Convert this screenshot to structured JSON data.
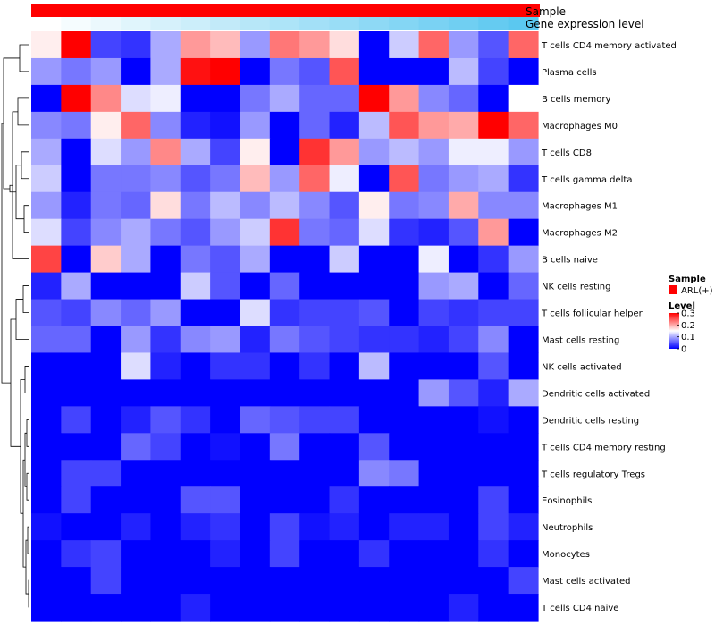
{
  "chart_data": {
    "type": "heatmap",
    "annotation_bars": {
      "sample": {
        "label": "Sample",
        "color": "#ff0000"
      },
      "gene_expression": {
        "label": "Gene expression level",
        "colors": [
          "#ffffff",
          "#5bc8f0"
        ]
      }
    },
    "rows": [
      "T cells CD4 memory activated",
      "Plasma cells",
      "B cells memory",
      "Macrophages M0",
      "T cells CD8",
      "T cells gamma delta",
      "Macrophages M1",
      "Macrophages M2",
      "B cells naive",
      "NK cells resting",
      "T cells follicular helper",
      "Mast cells resting",
      "NK cells activated",
      "Dendritic cells activated",
      "Dendritic cells resting",
      "T cells CD4 memory resting",
      "T cells regulatory  Tregs",
      "Eosinophils",
      "Neutrophils",
      "Monocytes",
      "Mast cells activated",
      "T cells CD4 naive"
    ],
    "values": [
      [
        0.16,
        0.3,
        0.04,
        0.03,
        0.1,
        0.21,
        0.19,
        0.09,
        0.23,
        0.21,
        0.17,
        0.0,
        0.12,
        0.24,
        0.09,
        0.05,
        0.24
      ],
      [
        0.09,
        0.07,
        0.09,
        0.0,
        0.1,
        0.29,
        0.3,
        0.0,
        0.07,
        0.05,
        0.25,
        0.0,
        0.0,
        0.0,
        0.11,
        0.04,
        0.0
      ],
      [
        0.0,
        0.3,
        0.22,
        0.13,
        0.14,
        0.0,
        0.0,
        0.07,
        0.1,
        0.06,
        0.06,
        0.3,
        0.21,
        0.08,
        0.06,
        0.0,
        0.15
      ],
      [
        0.08,
        0.07,
        0.16,
        0.24,
        0.08,
        0.02,
        0.01,
        0.09,
        0.0,
        0.06,
        0.02,
        0.11,
        0.25,
        0.21,
        0.2,
        0.3,
        0.24
      ],
      [
        0.1,
        0.0,
        0.13,
        0.09,
        0.22,
        0.1,
        0.04,
        0.16,
        0.0,
        0.27,
        0.21,
        0.09,
        0.11,
        0.09,
        0.14,
        0.14,
        0.09
      ],
      [
        0.12,
        0.0,
        0.07,
        0.07,
        0.08,
        0.05,
        0.07,
        0.19,
        0.09,
        0.24,
        0.14,
        0.0,
        0.25,
        0.07,
        0.09,
        0.1,
        0.03
      ],
      [
        0.09,
        0.02,
        0.07,
        0.06,
        0.17,
        0.07,
        0.11,
        0.08,
        0.11,
        0.08,
        0.05,
        0.16,
        0.07,
        0.08,
        0.2,
        0.08,
        0.08
      ],
      [
        0.13,
        0.04,
        0.08,
        0.1,
        0.07,
        0.05,
        0.09,
        0.12,
        0.27,
        0.07,
        0.06,
        0.13,
        0.03,
        0.02,
        0.05,
        0.21,
        0.0
      ],
      [
        0.26,
        0.0,
        0.18,
        0.1,
        0.0,
        0.07,
        0.05,
        0.1,
        0.0,
        0.0,
        0.12,
        0.0,
        0.0,
        0.14,
        0.0,
        0.03,
        0.09
      ],
      [
        0.02,
        0.1,
        0.0,
        0.0,
        0.0,
        0.12,
        0.05,
        0.0,
        0.06,
        0.0,
        0.0,
        0.0,
        0.0,
        0.09,
        0.1,
        0.0,
        0.06
      ],
      [
        0.05,
        0.04,
        0.08,
        0.06,
        0.09,
        0.0,
        0.0,
        0.13,
        0.03,
        0.04,
        0.04,
        0.05,
        0.0,
        0.04,
        0.03,
        0.04,
        0.04
      ],
      [
        0.06,
        0.06,
        0.0,
        0.09,
        0.03,
        0.08,
        0.09,
        0.02,
        0.07,
        0.05,
        0.04,
        0.03,
        0.03,
        0.02,
        0.04,
        0.08,
        0.0
      ],
      [
        0.0,
        0.0,
        0.0,
        0.13,
        0.02,
        0.0,
        0.03,
        0.03,
        0.0,
        0.03,
        0.0,
        0.11,
        0.0,
        0.0,
        0.0,
        0.05,
        0.0
      ],
      [
        0.0,
        0.0,
        0.0,
        0.0,
        0.0,
        0.0,
        0.0,
        0.0,
        0.0,
        0.0,
        0.0,
        0.0,
        0.0,
        0.09,
        0.05,
        0.02,
        0.1
      ],
      [
        0.0,
        0.04,
        0.0,
        0.02,
        0.05,
        0.03,
        0.0,
        0.06,
        0.05,
        0.04,
        0.04,
        0.0,
        0.0,
        0.0,
        0.0,
        0.01,
        0.0
      ],
      [
        0.0,
        0.0,
        0.0,
        0.06,
        0.04,
        0.0,
        0.01,
        0.0,
        0.07,
        0.0,
        0.0,
        0.05,
        0.0,
        0.0,
        0.0,
        0.0,
        0.0
      ],
      [
        0.0,
        0.04,
        0.04,
        0.0,
        0.0,
        0.0,
        0.0,
        0.0,
        0.0,
        0.0,
        0.0,
        0.08,
        0.07,
        0.0,
        0.0,
        0.0,
        0.0
      ],
      [
        0.0,
        0.04,
        0.0,
        0.0,
        0.0,
        0.05,
        0.05,
        0.0,
        0.0,
        0.0,
        0.03,
        0.0,
        0.0,
        0.0,
        0.0,
        0.04,
        0.0
      ],
      [
        0.01,
        0.0,
        0.0,
        0.02,
        0.0,
        0.02,
        0.03,
        0.0,
        0.04,
        0.01,
        0.02,
        0.0,
        0.02,
        0.02,
        0.0,
        0.04,
        0.02
      ],
      [
        0.0,
        0.03,
        0.04,
        0.0,
        0.0,
        0.0,
        0.02,
        0.0,
        0.04,
        0.0,
        0.0,
        0.03,
        0.0,
        0.0,
        0.0,
        0.03,
        0.0
      ],
      [
        0.0,
        0.0,
        0.04,
        0.0,
        0.0,
        0.0,
        0.0,
        0.0,
        0.0,
        0.0,
        0.0,
        0.0,
        0.0,
        0.0,
        0.0,
        0.0,
        0.04
      ],
      [
        0.0,
        0.0,
        0.0,
        0.0,
        0.0,
        0.02,
        0.0,
        0.0,
        0.0,
        0.0,
        0.0,
        0.0,
        0.0,
        0.0,
        0.02,
        0.0,
        0.0
      ]
    ],
    "color_scale": {
      "min": 0,
      "mid": 0.15,
      "max": 0.3,
      "low_color": "#0000ff",
      "mid_color": "#ffffff",
      "high_color": "#ff0000"
    },
    "legend": {
      "sample_title": "Sample",
      "sample_entry": "ARL(+)",
      "level_title": "Level",
      "ticks": [
        "0.3",
        "0.2",
        "0.1",
        "0"
      ],
      "tick_values": [
        0.3,
        0.2,
        0.1,
        0
      ]
    }
  }
}
